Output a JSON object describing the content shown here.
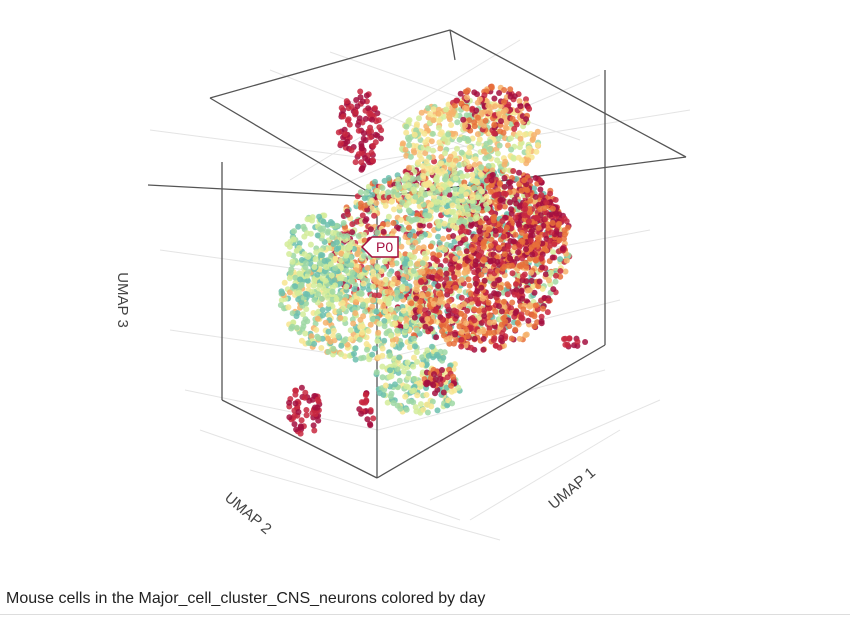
{
  "plot": {
    "axis_labels": {
      "x": "UMAP 1",
      "y": "UMAP 2",
      "z": "UMAP 3"
    },
    "hover_label": "P0"
  },
  "caption": "Mouse cells in the Major_cell_cluster_CNS_neurons colored by day"
}
